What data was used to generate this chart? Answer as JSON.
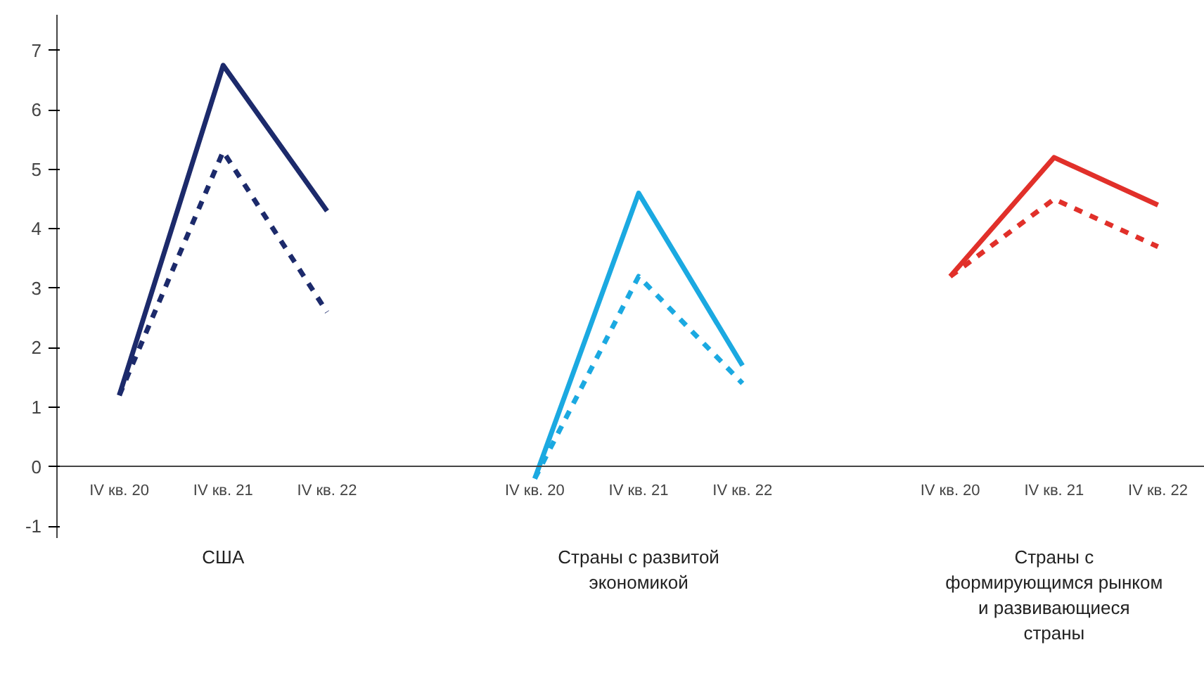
{
  "chart_data": {
    "type": "line",
    "categories": [
      "IV кв. 20",
      "IV кв. 21",
      "IV кв. 22",
      null,
      "IV кв. 20",
      "IV кв. 21",
      "IV кв. 22",
      null,
      "IV кв. 20",
      "IV кв. 21",
      "IV кв. 22"
    ],
    "series": [
      {
        "color": "#1c2a6b",
        "line_style": "solid",
        "values": [
          1.2,
          6.75,
          4.3,
          null,
          null,
          null,
          null,
          null,
          null,
          null,
          null
        ]
      },
      {
        "color": "#1c2a6b",
        "line_style": "dashed",
        "values": [
          1.2,
          5.3,
          2.6,
          null,
          null,
          null,
          null,
          null,
          null,
          null,
          null
        ]
      },
      {
        "color": "#1ba9e1",
        "line_style": "solid",
        "values": [
          null,
          null,
          null,
          null,
          -0.2,
          4.6,
          1.7,
          null,
          null,
          null,
          null
        ]
      },
      {
        "color": "#1ba9e1",
        "line_style": "dashed",
        "values": [
          null,
          null,
          null,
          null,
          -0.2,
          3.2,
          1.4,
          null,
          null,
          null,
          null
        ]
      },
      {
        "color": "#e1302a",
        "line_style": "solid",
        "values": [
          null,
          null,
          null,
          null,
          null,
          null,
          null,
          null,
          3.2,
          5.2,
          4.4
        ]
      },
      {
        "color": "#e1302a",
        "line_style": "dashed",
        "values": [
          null,
          null,
          null,
          null,
          null,
          null,
          null,
          null,
          3.2,
          4.5,
          3.7
        ]
      }
    ],
    "ylim": [
      -1.2,
      7.6
    ],
    "yticks": [
      -1,
      0,
      1,
      2,
      3,
      4,
      5,
      6,
      7
    ],
    "grid": false,
    "annotations": [
      "США",
      "Страны с развитой экономикой",
      "Страны с формирующимся рынком и развивающиеся страны"
    ]
  }
}
